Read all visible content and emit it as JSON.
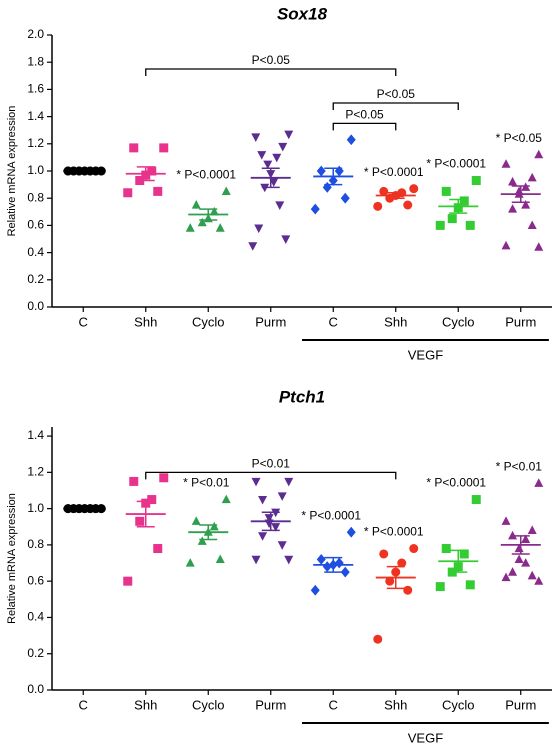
{
  "chart_data": [
    {
      "type": "dotplot",
      "title": "Sox18",
      "y_label": "Relative mRNA expression",
      "group_label": "VEGF",
      "group_span": [
        4,
        7
      ],
      "ylim": [
        0,
        2.0
      ],
      "yticks": [
        {
          "value": 0,
          "label": "0.0"
        },
        0.2,
        0.4,
        0.6,
        0.8,
        {
          "value": 1,
          "label": "1.0"
        },
        1.2,
        1.4,
        1.6,
        1.8,
        {
          "value": 2,
          "label": "2.0"
        }
      ],
      "groups": [
        {
          "category": "C",
          "color": "#000000",
          "marker": "circle",
          "values": [
            1,
            1,
            1,
            1,
            1,
            1,
            1,
            1,
            1,
            1,
            1,
            1,
            1,
            1
          ],
          "mean": 1,
          "sem": 0
        },
        {
          "category": "Shh",
          "color": "#e8338d",
          "marker": "square",
          "values": [
            1.17,
            1.17,
            1.0,
            0.97,
            0.93,
            0.85,
            0.84
          ],
          "mean": 0.98,
          "sem": 0.05
        },
        {
          "category": "Cyclo",
          "color": "#2e9e4f",
          "marker": "triangle-up",
          "values": [
            0.85,
            0.75,
            0.7,
            0.65,
            0.62,
            0.58,
            0.58
          ],
          "mean": 0.68,
          "sem": 0.04,
          "annotation": "* P<0.0001"
        },
        {
          "category": "Purm",
          "color": "#5b2d91",
          "marker": "triangle-down",
          "values": [
            1.27,
            1.25,
            1.18,
            1.12,
            1.1,
            1.05,
            0.98,
            0.92,
            0.88,
            0.75,
            0.58,
            0.5,
            0.45
          ],
          "mean": 0.95,
          "sem": 0.07
        },
        {
          "category": "C",
          "color": "#1f4fe0",
          "marker": "diamond",
          "values": [
            1.23,
            1.0,
            1.0,
            0.93,
            0.88,
            0.8,
            0.72
          ],
          "mean": 0.96,
          "sem": 0.06
        },
        {
          "category": "Shh",
          "color": "#ee3322",
          "marker": "circle",
          "values": [
            0.87,
            0.85,
            0.84,
            0.82,
            0.8,
            0.75,
            0.74
          ],
          "mean": 0.82,
          "sem": 0.02,
          "annotation": "* P<0.0001"
        },
        {
          "category": "Cyclo",
          "color": "#33cc33",
          "marker": "square",
          "values": [
            0.93,
            0.85,
            0.78,
            0.73,
            0.65,
            0.6,
            0.6
          ],
          "mean": 0.74,
          "sem": 0.05,
          "annotation": "* P<0.0001"
        },
        {
          "category": "Purm",
          "color": "#8a2a8c",
          "marker": "triangle-up",
          "values": [
            1.12,
            1.05,
            0.95,
            0.92,
            0.88,
            0.85,
            0.83,
            0.75,
            0.72,
            0.6,
            0.45,
            0.44
          ],
          "mean": 0.83,
          "sem": 0.06,
          "annotation": "* P<0.05"
        }
      ],
      "brackets": [
        {
          "from": 1,
          "to": 5,
          "y": 1.75,
          "label": "P<0.05"
        },
        {
          "from": 4,
          "to": 6,
          "y": 1.5,
          "label": "P<0.05"
        },
        {
          "from": 4,
          "to": 5,
          "y": 1.35,
          "label": "P<0.05"
        }
      ]
    },
    {
      "type": "dotplot",
      "title": "Ptch1",
      "y_label": "Relative mRNA expression",
      "group_label": "VEGF",
      "group_span": [
        4,
        7
      ],
      "ylim": [
        0,
        1.45
      ],
      "yticks": [
        {
          "value": 0,
          "label": "0.0"
        },
        0.2,
        0.4,
        0.6,
        0.8,
        {
          "value": 1,
          "label": "1.0"
        },
        1.2,
        1.4
      ],
      "groups": [
        {
          "category": "C",
          "color": "#000000",
          "marker": "circle",
          "values": [
            1,
            1,
            1,
            1,
            1,
            1,
            1,
            1,
            1,
            1,
            1,
            1,
            1,
            1
          ],
          "mean": 1,
          "sem": 0
        },
        {
          "category": "Shh",
          "color": "#e8338d",
          "marker": "square",
          "values": [
            1.17,
            1.15,
            1.05,
            1.03,
            0.93,
            0.78,
            0.6
          ],
          "mean": 0.97,
          "sem": 0.07
        },
        {
          "category": "Cyclo",
          "color": "#2e9e4f",
          "marker": "triangle-up",
          "values": [
            1.05,
            0.93,
            0.9,
            0.87,
            0.82,
            0.72,
            0.7
          ],
          "mean": 0.87,
          "sem": 0.04,
          "annotation": "* P<0.01"
        },
        {
          "category": "Purm",
          "color": "#5b2d91",
          "marker": "triangle-down",
          "values": [
            1.15,
            1.15,
            1.07,
            1.05,
            0.98,
            0.95,
            0.92,
            0.9,
            0.85,
            0.8,
            0.72,
            0.72
          ],
          "mean": 0.93,
          "sem": 0.05
        },
        {
          "category": "C",
          "color": "#1f4fe0",
          "marker": "diamond",
          "values": [
            0.87,
            0.72,
            0.7,
            0.69,
            0.68,
            0.65,
            0.55
          ],
          "mean": 0.69,
          "sem": 0.04,
          "annotation": "* P<0.0001"
        },
        {
          "category": "Shh",
          "color": "#ee3322",
          "marker": "circle",
          "values": [
            0.78,
            0.75,
            0.7,
            0.65,
            0.6,
            0.55,
            0.28
          ],
          "mean": 0.62,
          "sem": 0.06,
          "annotation": "* P<0.0001"
        },
        {
          "category": "Cyclo",
          "color": "#33cc33",
          "marker": "square",
          "values": [
            1.05,
            0.78,
            0.75,
            0.68,
            0.65,
            0.58,
            0.57
          ],
          "mean": 0.71,
          "sem": 0.06,
          "annotation": "* P<0.0001"
        },
        {
          "category": "Purm",
          "color": "#8a2a8c",
          "marker": "triangle-up",
          "values": [
            1.14,
            0.93,
            0.88,
            0.85,
            0.83,
            0.78,
            0.72,
            0.7,
            0.65,
            0.63,
            0.62,
            0.6
          ],
          "mean": 0.8,
          "sem": 0.05,
          "annotation": "* P<0.01"
        }
      ],
      "brackets": [
        {
          "from": 1,
          "to": 5,
          "y": 1.2,
          "label": "P<0.01"
        }
      ]
    }
  ]
}
